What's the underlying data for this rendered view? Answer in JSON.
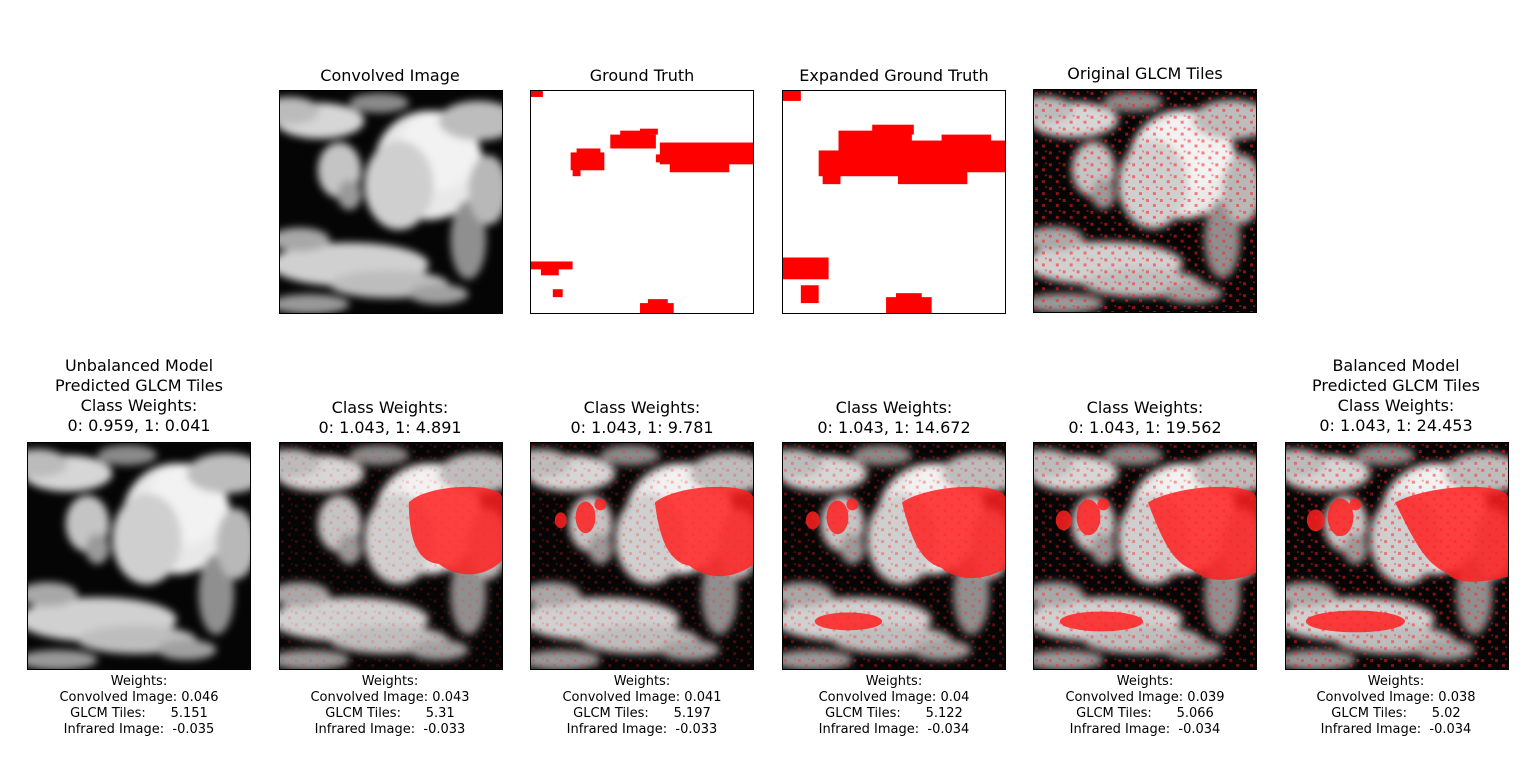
{
  "top_row": [
    {
      "title": "Convolved Image",
      "kind": "gray",
      "overlay": "none"
    },
    {
      "title": "Ground Truth",
      "kind": "mask",
      "overlay": "gt"
    },
    {
      "title": "Expanded Ground Truth",
      "kind": "mask",
      "overlay": "egt"
    },
    {
      "title": "Original GLCM Tiles",
      "kind": "gray",
      "overlay": "speckle"
    }
  ],
  "bottom_row": [
    {
      "title": "Unbalanced Model\nPredicted GLCM Tiles\nClass Weights:\n0: 0.959, 1: 0.041",
      "overlay_level": 0,
      "weights_label": "Weights:",
      "conv": "Convolved Image: 0.046",
      "glcm": "GLCM Tiles:      5.151",
      "ir": "Infrared Image:  -0.035"
    },
    {
      "title": "Class Weights:\n0: 1.043, 1: 4.891",
      "overlay_level": 1,
      "weights_label": "Weights:",
      "conv": "Convolved Image: 0.043",
      "glcm": "GLCM Tiles:      5.31",
      "ir": "Infrared Image:  -0.033"
    },
    {
      "title": "Class Weights:\n0: 1.043, 1: 9.781",
      "overlay_level": 2,
      "weights_label": "Weights:",
      "conv": "Convolved Image: 0.041",
      "glcm": "GLCM Tiles:      5.197",
      "ir": "Infrared Image:  -0.033"
    },
    {
      "title": "Class Weights:\n0: 1.043, 1: 14.672",
      "overlay_level": 3,
      "weights_label": "Weights:",
      "conv": "Convolved Image: 0.04",
      "glcm": "GLCM Tiles:      5.122",
      "ir": "Infrared Image:  -0.034"
    },
    {
      "title": "Class Weights:\n0: 1.043, 1: 19.562",
      "overlay_level": 4,
      "weights_label": "Weights:",
      "conv": "Convolved Image: 0.039",
      "glcm": "GLCM Tiles:      5.066",
      "ir": "Infrared Image:  -0.034"
    },
    {
      "title": "Balanced Model\nPredicted GLCM Tiles\nClass Weights:\n0: 1.043, 1: 24.453",
      "overlay_level": 5,
      "weights_label": "Weights:",
      "conv": "Convolved Image: 0.038",
      "glcm": "GLCM Tiles:      5.02",
      "ir": "Infrared Image:  -0.034"
    }
  ],
  "colors": {
    "overlay_red": "#ff2020",
    "mask_red": "#ff0000",
    "background": "#ffffff"
  }
}
